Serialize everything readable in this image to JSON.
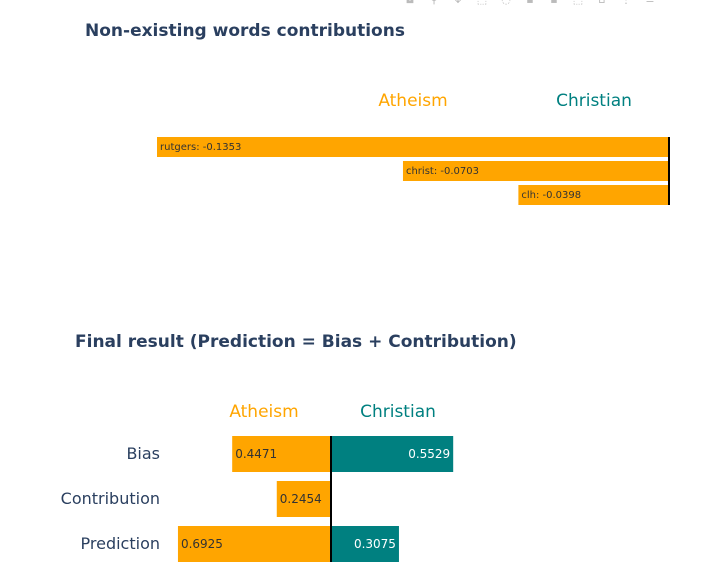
{
  "colors": {
    "atheism": "#FFA500",
    "christian": "#008080",
    "title": "#2a3f5f",
    "axis": "#000000"
  },
  "toolbar_icons": [
    "camera-icon",
    "zoom-icon",
    "pan-icon",
    "box-select-icon",
    "lasso-icon",
    "zoom-in-icon",
    "zoom-out-icon",
    "autoscale-icon",
    "reset-axes-icon",
    "spike-icon",
    "compare-icon"
  ],
  "chart_data": [
    {
      "type": "bar",
      "orientation": "horizontal",
      "title": "Non-existing words contributions",
      "class_labels": [
        "Atheism",
        "Christian"
      ],
      "categories": [
        "rutgers",
        "christ",
        "clh"
      ],
      "values": [
        -0.1353,
        -0.0703,
        -0.0398
      ],
      "bar_labels": [
        "rutgers: -0.1353",
        "christ: -0.0703",
        "clh: -0.0398"
      ],
      "xlim": [
        -0.1353,
        0
      ]
    },
    {
      "type": "bar",
      "orientation": "horizontal",
      "title": "Final result (Prediction = Bias + Contribution)",
      "class_labels": [
        "Atheism",
        "Christian"
      ],
      "categories": [
        "Bias",
        "Contribution",
        "Prediction"
      ],
      "series": [
        {
          "name": "Atheism",
          "values": [
            0.4471,
            0.2454,
            0.6925
          ],
          "labels": [
            "0.4471",
            "0.2454",
            "0.6925"
          ]
        },
        {
          "name": "Christian",
          "values": [
            0.5529,
            0,
            0.3075
          ],
          "labels": [
            "0.5529",
            "",
            "0.3075"
          ]
        }
      ]
    }
  ]
}
